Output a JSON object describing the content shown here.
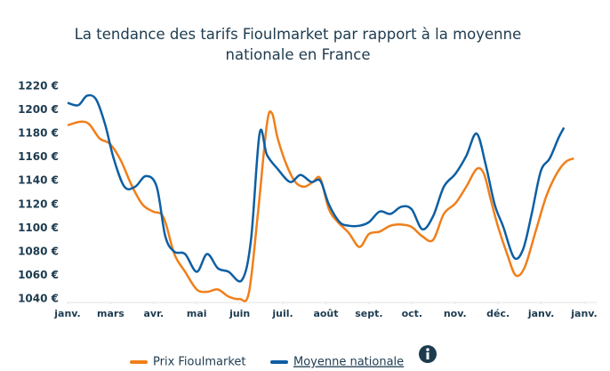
{
  "chart_data": {
    "type": "line",
    "title": "La tendance des tarifs Fioulmarket par rapport à la moyenne nationale en France",
    "xlim": [
      0,
      12
    ],
    "xticks": [
      {
        "value": 0,
        "label": "janv."
      },
      {
        "value": 1,
        "label": "mars"
      },
      {
        "value": 2,
        "label": "avr."
      },
      {
        "value": 3,
        "label": "mai"
      },
      {
        "value": 4,
        "label": "juin"
      },
      {
        "value": 5,
        "label": "juil."
      },
      {
        "value": 6,
        "label": "août"
      },
      {
        "value": 7,
        "label": "sept."
      },
      {
        "value": 8,
        "label": "oct."
      },
      {
        "value": 9,
        "label": "nov."
      },
      {
        "value": 10,
        "label": "déc."
      },
      {
        "value": 11,
        "label": "janv."
      },
      {
        "value": 12,
        "label": "janv."
      }
    ],
    "ylim": [
      1040,
      1220
    ],
    "yticks": [
      {
        "value": 1040,
        "label": "1040 €"
      },
      {
        "value": 1060,
        "label": "1060 €"
      },
      {
        "value": 1080,
        "label": "1080 €"
      },
      {
        "value": 1100,
        "label": "1100 €"
      },
      {
        "value": 1120,
        "label": "1120 €"
      },
      {
        "value": 1140,
        "label": "1140 €"
      },
      {
        "value": 1160,
        "label": "1160 €"
      },
      {
        "value": 1180,
        "label": "1180 €"
      },
      {
        "value": 1200,
        "label": "1200 €"
      },
      {
        "value": 1220,
        "label": "1220 €"
      }
    ],
    "grid": false,
    "series": [
      {
        "name": "Prix Fioulmarket",
        "color": "#f07f1a",
        "x": [
          0,
          0.29,
          0.5,
          0.74,
          0.99,
          1.24,
          1.49,
          1.74,
          1.98,
          2.23,
          2.48,
          2.73,
          3.0,
          3.24,
          3.49,
          3.74,
          3.99,
          4.21,
          4.42,
          4.63,
          4.75,
          4.88,
          5.08,
          5.29,
          5.5,
          5.7,
          5.87,
          6.07,
          6.28,
          6.53,
          6.78,
          7.0,
          7.25,
          7.5,
          7.75,
          7.99,
          8.24,
          8.49,
          8.74,
          9.01,
          9.26,
          9.5,
          9.67,
          9.83,
          10.0,
          10.21,
          10.41,
          10.62,
          10.87,
          11.12,
          11.36,
          11.57,
          11.76
        ],
        "values": [
          1187,
          1190,
          1188,
          1176,
          1171,
          1157,
          1136,
          1120,
          1114,
          1109,
          1078,
          1063,
          1048,
          1046,
          1048,
          1042,
          1040,
          1045,
          1112,
          1188,
          1197,
          1176,
          1154,
          1139,
          1135,
          1139,
          1142,
          1116,
          1105,
          1096,
          1084,
          1095,
          1097,
          1102,
          1103,
          1101,
          1093,
          1090,
          1112,
          1121,
          1135,
          1150,
          1146,
          1124,
          1101,
          1078,
          1060,
          1067,
          1097,
          1127,
          1146,
          1156,
          1159
        ]
      },
      {
        "name": "Moyenne nationale",
        "color": "#0d5fa3",
        "x": [
          0,
          0.25,
          0.45,
          0.66,
          0.87,
          1.07,
          1.32,
          1.57,
          1.82,
          2.07,
          2.27,
          2.48,
          2.73,
          3.0,
          3.24,
          3.49,
          3.74,
          4.05,
          4.26,
          4.46,
          4.63,
          4.88,
          5.17,
          5.41,
          5.66,
          5.87,
          6.07,
          6.32,
          6.53,
          6.78,
          7.0,
          7.25,
          7.5,
          7.75,
          7.99,
          8.24,
          8.49,
          8.74,
          9.01,
          9.26,
          9.5,
          9.71,
          9.92,
          10.12,
          10.37,
          10.58,
          10.78,
          10.99,
          11.2,
          11.4,
          11.53
        ],
        "values": [
          1206,
          1204,
          1212,
          1209,
          1188,
          1159,
          1135,
          1135,
          1144,
          1135,
          1093,
          1080,
          1078,
          1063,
          1078,
          1066,
          1063,
          1056,
          1090,
          1180,
          1162,
          1150,
          1139,
          1145,
          1139,
          1140,
          1120,
          1105,
          1102,
          1102,
          1105,
          1114,
          1112,
          1118,
          1116,
          1099,
          1110,
          1135,
          1146,
          1161,
          1180,
          1154,
          1120,
          1101,
          1075,
          1082,
          1112,
          1148,
          1159,
          1176,
          1185
        ]
      }
    ]
  }
}
